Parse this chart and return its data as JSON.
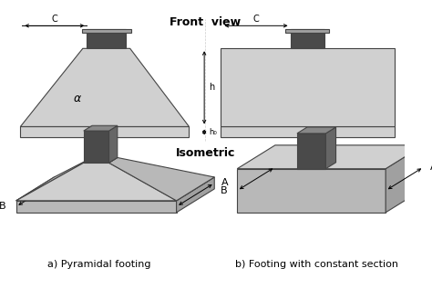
{
  "title_front": "Front  view",
  "title_iso": "Isometric",
  "label_a_left": "a) Pyramidal footing",
  "label_b_right": "b) Footing with constant section",
  "label_A": "A",
  "label_B": "B",
  "label_C": "C",
  "label_h": "h",
  "label_h0": "h₀",
  "label_alpha": "α",
  "bg_color": "#ffffff",
  "footing_light": "#d0d0d0",
  "footing_mid": "#b8b8b8",
  "footing_dark": "#a0a0a0",
  "footing_edge": "#444444",
  "col_front": "#4a4a4a",
  "col_right": "#666666",
  "col_top": "#888888"
}
